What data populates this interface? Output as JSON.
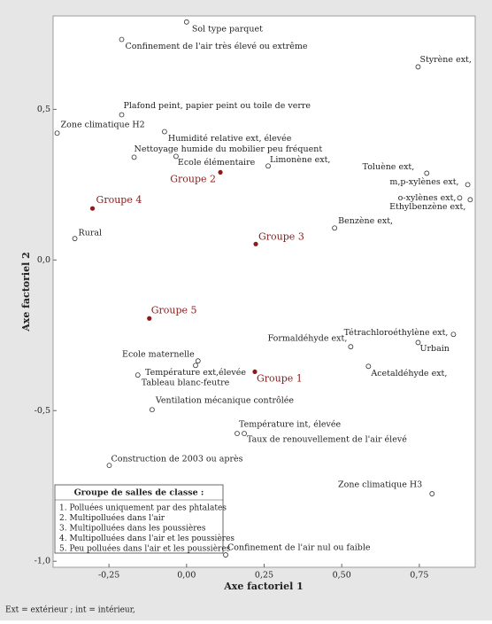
{
  "chart_data": {
    "type": "scatter",
    "x_label": "Axe factoriel 1",
    "y_label": "Axe factoriel 2",
    "xlim": [
      -0.43,
      0.93
    ],
    "ylim": [
      -1.02,
      0.81
    ],
    "xticks": [
      {
        "value": -0.25,
        "label": "-0,25"
      },
      {
        "value": 0,
        "label": "0,00"
      },
      {
        "value": 0.25,
        "label": "0,25"
      },
      {
        "value": 0.5,
        "label": "0,50"
      },
      {
        "value": 0.75,
        "label": "0,75"
      }
    ],
    "yticks": [
      {
        "value": 0.5,
        "label": "0,5"
      },
      {
        "value": 0,
        "label": "0,0"
      },
      {
        "value": -0.5,
        "label": "-0,5"
      },
      {
        "value": -1,
        "label": "-1,0"
      }
    ],
    "point_color": "#333333",
    "group_color": "#8b1a1a",
    "points": [
      {
        "label": "Sol type parquet",
        "x": 0.0,
        "y": 0.79
      },
      {
        "label": "Confinement de l'air très élevé ou extrême",
        "x": -0.209,
        "y": 0.732
      },
      {
        "label": "Styrène ext,",
        "x": 0.746,
        "y": 0.641
      },
      {
        "label": "Plafond peint, papier peint ou toile de verre",
        "x": -0.209,
        "y": 0.482
      },
      {
        "label": "Zone climatique H2",
        "x": -0.417,
        "y": 0.421
      },
      {
        "label": "Humidité relative ext, élevée",
        "x": -0.071,
        "y": 0.426
      },
      {
        "label": "Nettoyage humide du mobilier peu fréquent",
        "x": -0.169,
        "y": 0.341
      },
      {
        "label": "Ecole élémentaire",
        "x": -0.034,
        "y": 0.344
      },
      {
        "label": "Limonène ext,",
        "x": 0.263,
        "y": 0.312
      },
      {
        "label": "Toluène ext,",
        "x": 0.774,
        "y": 0.288
      },
      {
        "label": "m,p-xylènes ext,",
        "x": 0.906,
        "y": 0.25
      },
      {
        "label": "o-xylènes ext,",
        "x": 0.88,
        "y": 0.206
      },
      {
        "label": "Ethylbenzène ext,",
        "x": 0.914,
        "y": 0.2
      },
      {
        "label": "Benzène ext,",
        "x": 0.477,
        "y": 0.106
      },
      {
        "label": "Rural",
        "x": -0.36,
        "y": 0.071
      },
      {
        "label": "Tétrachloroéthylène ext,",
        "x": 0.86,
        "y": -0.247
      },
      {
        "label": "Urbain",
        "x": 0.746,
        "y": -0.274
      },
      {
        "label": "Formaldéhyde ext,",
        "x": 0.529,
        "y": -0.288
      },
      {
        "label": "Acetaldéhyde ext,",
        "x": 0.586,
        "y": -0.353
      },
      {
        "label": "Ecole maternelle",
        "x": 0.037,
        "y": -0.335
      },
      {
        "label": "Température ext,élevée",
        "x": 0.029,
        "y": -0.35
      },
      {
        "label": "Tableau blanc-feutre",
        "x": -0.157,
        "y": -0.382
      },
      {
        "label": "Ventilation mécanique contrôlée",
        "x": -0.111,
        "y": -0.497
      },
      {
        "label": "Température int, élevée",
        "x": 0.163,
        "y": -0.576
      },
      {
        "label": "Taux de renouvellement de l'air élevé",
        "x": 0.186,
        "y": -0.576
      },
      {
        "label": "Construction de 2003 ou après",
        "x": -0.249,
        "y": -0.682
      },
      {
        "label": "Zone climatique H3",
        "x": 0.791,
        "y": -0.776
      },
      {
        "label": "Confinement de l'air nul ou faible",
        "x": 0.126,
        "y": -0.979
      }
    ],
    "groups": [
      {
        "label": "Groupe 2",
        "x": 0.109,
        "y": 0.291
      },
      {
        "label": "Groupe 4",
        "x": -0.303,
        "y": 0.171
      },
      {
        "label": "Groupe 3",
        "x": 0.223,
        "y": 0.053
      },
      {
        "label": "Groupe 5",
        "x": -0.12,
        "y": -0.194
      },
      {
        "label": "Groupe 1",
        "x": 0.22,
        "y": -0.371
      }
    ],
    "legend": {
      "title": "Groupe de salles de classe :",
      "items": [
        "1. Polluées uniquement par des phtalates",
        "2. Multipolluées dans l'air",
        "3. Multipolluées dans les poussières",
        "4. Multipolluées dans l'air et les poussières",
        "5. Peu polluées dans l'air et les poussières"
      ]
    },
    "footnote": "Ext = extérieur ; int = intérieur,"
  }
}
